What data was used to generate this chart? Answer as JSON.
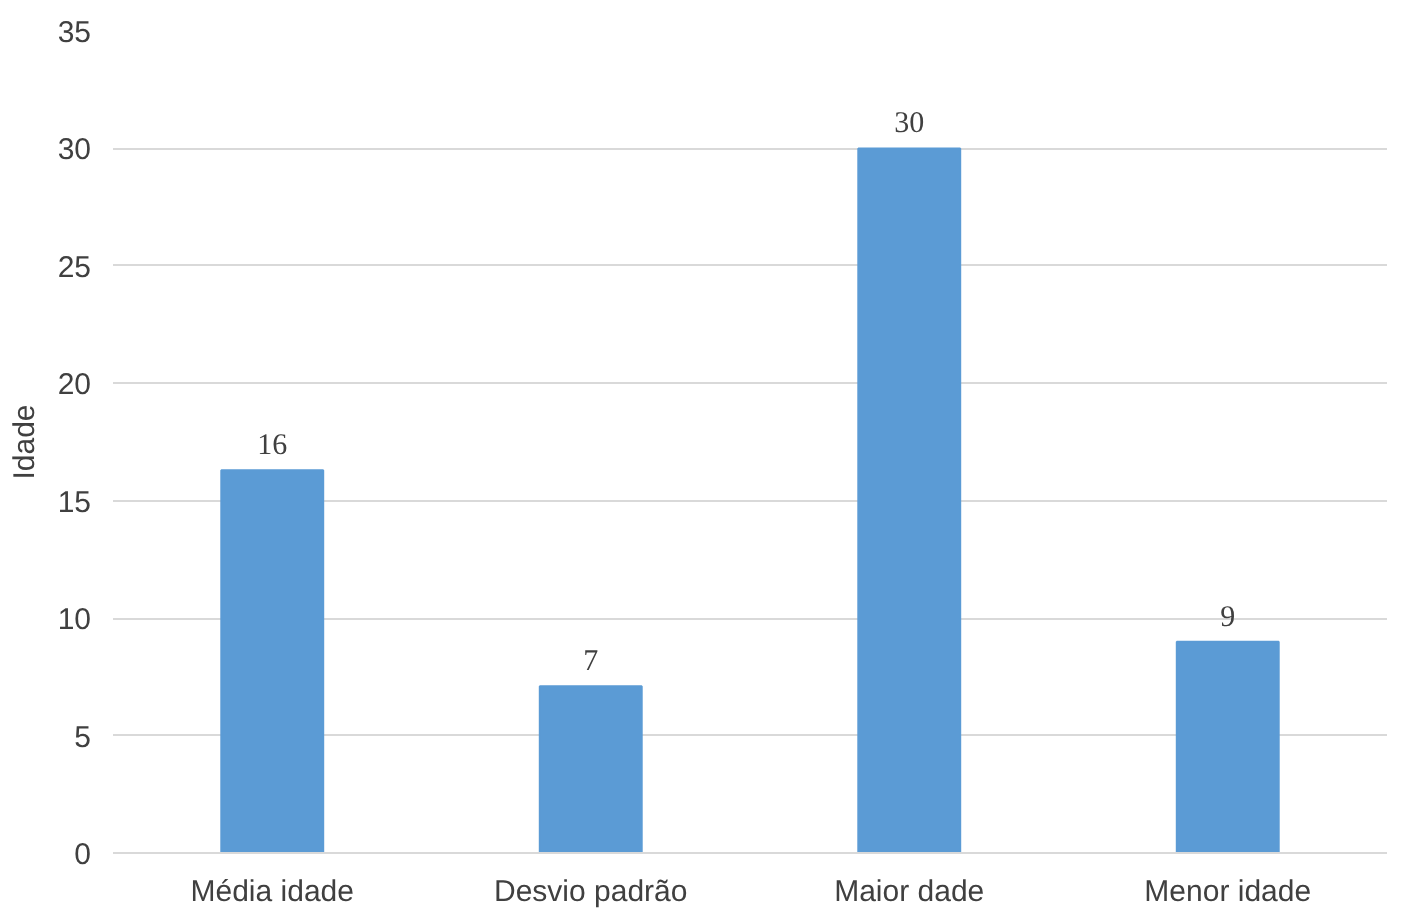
{
  "chart_data": {
    "type": "bar",
    "ylabel": "Idade",
    "categories": [
      "Média idade",
      "Desvio padrão",
      "Maior dade",
      "Menor idade"
    ],
    "values": [
      16.3,
      7.1,
      30,
      9
    ],
    "value_labels": [
      "16",
      "7",
      "30",
      "9"
    ],
    "color": "#5b9bd5",
    "ylim": [
      0,
      35
    ],
    "yticks": [
      0,
      5,
      10,
      15,
      20,
      25,
      30,
      35
    ],
    "grid": "y"
  }
}
